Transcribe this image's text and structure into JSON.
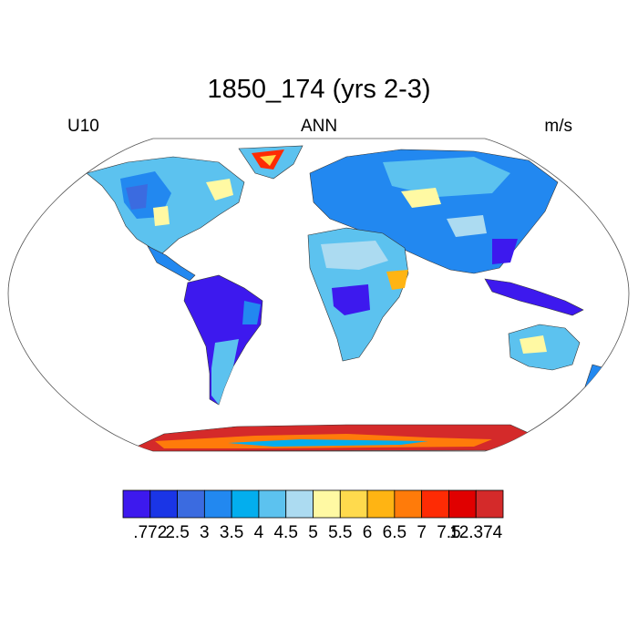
{
  "header": {
    "title": "1850_174 (yrs 2-3)",
    "left_label": "U10",
    "center_label": "ANN",
    "right_label": "m/s"
  },
  "map": {
    "projection": "Robinson",
    "variable": "U10",
    "season": "ANN",
    "units": "m/s",
    "continent_fill_levels": {
      "north_america": "3.5",
      "south_america": "0.772",
      "greenland": "7.5",
      "europe_asia": "4",
      "africa": "4",
      "australia": "4.5",
      "antarctica": "7.5",
      "maritime_continent": "0.772"
    }
  },
  "colorbar": {
    "colors": [
      "#3d19ee",
      "#1a35e6",
      "#3b6be0",
      "#2288f0",
      "#03aeee",
      "#5cc2ef",
      "#acdbf1",
      "#fff9a3",
      "#ffda4d",
      "#ffb413",
      "#ff7b0a",
      "#fe2b04",
      "#e00000",
      "#d42a2a"
    ],
    "labels": [
      ".772",
      "2.5",
      "3",
      "3.5",
      "4",
      "4.5",
      "5",
      "5.5",
      "6",
      "6.5",
      "7",
      "7.5",
      "12.374"
    ]
  }
}
